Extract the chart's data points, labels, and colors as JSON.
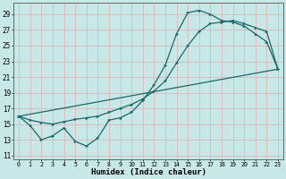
{
  "background_color": "#c8e8e8",
  "grid_color": "#d8b8b8",
  "line_color": "#1a6868",
  "xlabel": "Humidex (Indice chaleur)",
  "xlim": [
    -0.5,
    23.5
  ],
  "ylim": [
    10.5,
    30.5
  ],
  "yticks": [
    11,
    13,
    15,
    17,
    19,
    21,
    23,
    25,
    27,
    29
  ],
  "xticks": [
    0,
    1,
    2,
    3,
    4,
    5,
    6,
    7,
    8,
    9,
    10,
    11,
    12,
    13,
    14,
    15,
    16,
    17,
    18,
    19,
    20,
    21,
    22,
    23
  ],
  "curve1_x": [
    0,
    1,
    2,
    3,
    4,
    5,
    6,
    7,
    8,
    9,
    10,
    11,
    12,
    13,
    14,
    15,
    16,
    17,
    18,
    19,
    20,
    21,
    22,
    23
  ],
  "curve1_y": [
    16.0,
    14.8,
    13.0,
    13.5,
    14.5,
    12.8,
    12.2,
    13.2,
    15.5,
    15.8,
    16.5,
    18.0,
    20.0,
    22.5,
    26.5,
    29.2,
    29.5,
    29.0,
    28.2,
    28.0,
    27.5,
    26.5,
    25.5,
    22.0
  ],
  "curve2_x": [
    0,
    1,
    2,
    3,
    4,
    5,
    6,
    7,
    8,
    9,
    10,
    11,
    12,
    13,
    14,
    15,
    16,
    17,
    18,
    19,
    20,
    21,
    22,
    23
  ],
  "curve2_y": [
    16.0,
    15.5,
    15.2,
    15.0,
    15.3,
    15.6,
    15.8,
    16.0,
    16.5,
    17.0,
    17.5,
    18.2,
    19.2,
    20.5,
    22.8,
    25.0,
    26.8,
    27.8,
    28.0,
    28.2,
    27.8,
    27.3,
    26.8,
    22.0
  ],
  "curve3_x": [
    0,
    23
  ],
  "curve3_y": [
    16.0,
    22.0
  ]
}
